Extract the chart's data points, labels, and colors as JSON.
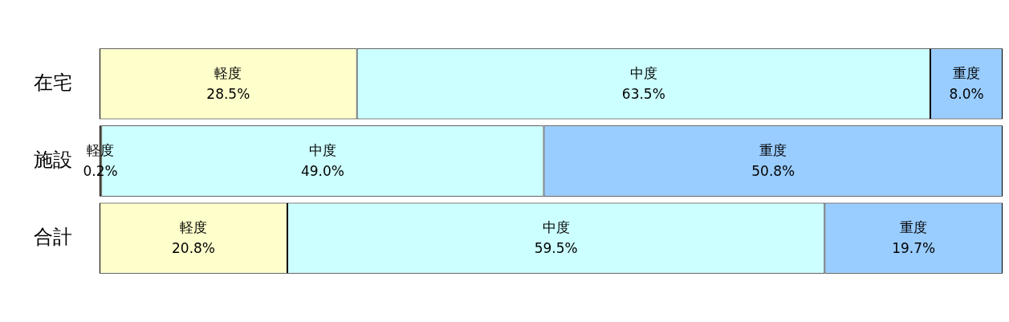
{
  "chart_data": {
    "type": "bar",
    "orientation": "horizontal",
    "stacked": true,
    "categories": [
      "在宅",
      "施設",
      "合計"
    ],
    "xlim": [
      0,
      100
    ],
    "tick_labels": "y",
    "grid": false,
    "legend": false,
    "series": [
      {
        "name": "軽度",
        "color": "#ffffcc",
        "values": [
          28.5,
          0.2,
          20.8
        ],
        "value_labels": [
          "28.5%",
          "0.2%",
          "20.8%"
        ]
      },
      {
        "name": "中度",
        "color": "#ccffff",
        "values": [
          63.5,
          49.0,
          59.5
        ],
        "value_labels": [
          "63.5%",
          "49.0%",
          "59.5%"
        ]
      },
      {
        "name": "重度",
        "color": "#99ccff",
        "values": [
          8.0,
          50.8,
          19.7
        ],
        "value_labels": [
          "8.0%",
          "50.8%",
          "19.7%"
        ]
      }
    ]
  }
}
